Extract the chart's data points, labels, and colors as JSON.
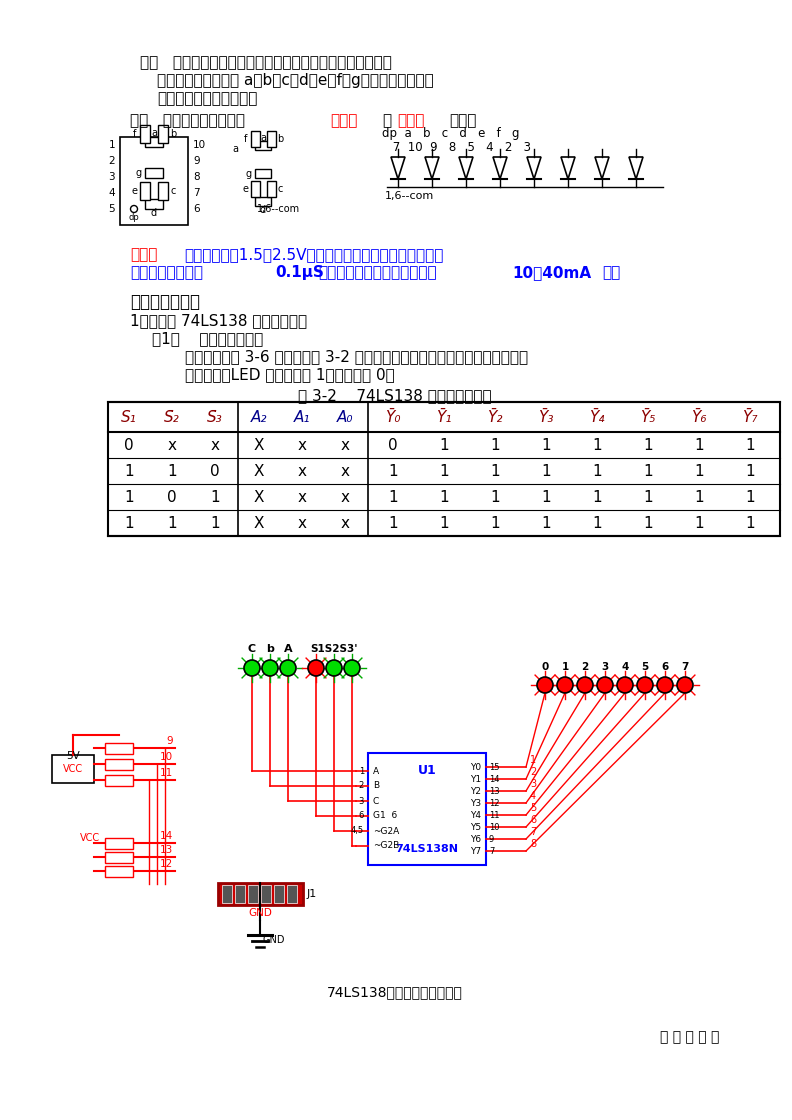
{
  "bg_color": "#ffffff",
  "para1_line1": "构成   将七个发光二极管按一定方式连接在一起，每段为一个",
  "para1_line2": "发光管，七段分别为 a、b、c、d、e、f、g，显示那个字型，",
  "para1_line3": "则相应段的发光管发光。",
  "para2_pre": "分类   按连接方式不同分为",
  "para2_red1": "共阴极",
  "para2_mid": "和",
  "para2_red2": "共阳极",
  "para2_end": "两种。",
  "feature_label": "特点：",
  "feature_line1": "工作电压低（1.5～2.5V）、体积小、寿命长、可靠性高、",
  "feature_line2_pre": "响应时间快（小于",
  "feature_line2_bold": "0.1μS",
  "feature_line2_mid": "），但每一段的工作电流大（",
  "feature_line2_bold2": "10～40mA",
  "feature_line2_end": "）。",
  "section4": "四、实验步骤：",
  "item1": "1、译码器 74LS138 逻辑功能测试",
  "item1_1": "（1）    控制端功能测试",
  "item1_1a": "测试电路如图 3-6 所示。按表 3-2 所示条件输入开关状态。观察并记录译码器",
  "item1_1b": "输出状态。LED 指示灯亮为 1，灯不亮为 0。",
  "table_caption": "表 3-2    74LS138 控制端功能测试",
  "table_rows": [
    [
      "0",
      "x",
      "x",
      "X",
      "x",
      "x",
      "0",
      "1",
      "1",
      "1",
      "1",
      "1",
      "1",
      "1"
    ],
    [
      "1",
      "1",
      "0",
      "X",
      "x",
      "x",
      "1",
      "1",
      "1",
      "1",
      "1",
      "1",
      "1",
      "1"
    ],
    [
      "1",
      "0",
      "1",
      "X",
      "x",
      "x",
      "1",
      "1",
      "1",
      "1",
      "1",
      "1",
      "1",
      "1"
    ],
    [
      "1",
      "1",
      "1",
      "X",
      "x",
      "x",
      "1",
      "1",
      "1",
      "1",
      "1",
      "1",
      "1",
      "1"
    ]
  ],
  "circuit_caption": "74LS138控制端功能测试电路",
  "author": "刘 志 飞 制 作",
  "led_labels_top": [
    "dp",
    "a",
    "b",
    "c",
    "d",
    "e",
    "f",
    "g"
  ],
  "led_nums_top": [
    "7",
    "10",
    "9",
    "8",
    "5",
    "4",
    "2",
    "3"
  ],
  "seg_com": "1,6--com"
}
